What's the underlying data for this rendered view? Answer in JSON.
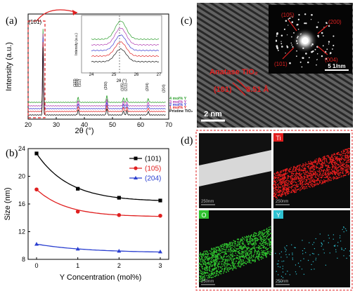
{
  "panels": {
    "a": {
      "label": "(a)",
      "ylabel": "Intensity (a.u.)",
      "xlabel": "2θ (°)",
      "xticks": [
        "20",
        "30",
        "40",
        "50",
        "60",
        "70"
      ],
      "peak_labels": [
        "(101)",
        "(103)",
        "(004)",
        "(112)",
        "(200)",
        "(105)",
        "(211)",
        "(204)",
        "(204)"
      ],
      "series": [
        {
          "name": "4 mol% Y",
          "color": "#2a9d2a"
        },
        {
          "name": "3 mol% Y",
          "color": "#b03ab0"
        },
        {
          "name": "2 mol% Y",
          "color": "#3a3ad0"
        },
        {
          "name": "1 mol% Y",
          "color": "#e02020"
        },
        {
          "name": "Pristine TiO₂",
          "color": "#111111"
        }
      ],
      "inset": {
        "ylabel": "Intensity (a.u.)",
        "xlabel": "2θ (°)",
        "xticks": [
          "24",
          "25",
          "26",
          "27"
        ]
      }
    },
    "b": {
      "label": "(b)",
      "ylabel": "Size (nm)",
      "xlabel": "Y Concentration (mol%)",
      "yticks": [
        "8",
        "12",
        "16",
        "20",
        "24"
      ],
      "xticks": [
        "0",
        "1",
        "2",
        "3"
      ]
    },
    "c": {
      "label": "(c)",
      "annotation_phase": "Anatase TiO₂",
      "annotation_plane": "(101)",
      "annotation_spacing": "3.51 Å",
      "scalebar": "2 nm",
      "saed_labels": [
        "(105)",
        "(200)",
        "(101)",
        "(004)"
      ],
      "saed_scale": "5 1/nm"
    },
    "d": {
      "label": "(d)",
      "tiles": [
        {
          "element": "",
          "scale": "250nm"
        },
        {
          "element": "Ti",
          "scale": "250nm",
          "color": "#e21d1d"
        },
        {
          "element": "O",
          "scale": "250nm",
          "color": "#2fc22f"
        },
        {
          "element": "Y",
          "scale": "250nm",
          "color": "#2ec0d0"
        }
      ]
    }
  },
  "chart_data": [
    {
      "type": "line",
      "panel": "a",
      "xlabel": "2θ (°)",
      "ylabel": "Intensity (a.u.)",
      "xlim": [
        20,
        70
      ],
      "series": [
        {
          "name": "4 mol% Y",
          "peaks": [
            25.3,
            37.8,
            48.0,
            53.9,
            55.1,
            62.7
          ]
        },
        {
          "name": "3 mol% Y",
          "peaks": [
            25.3,
            37.8,
            48.0,
            53.9,
            55.1,
            62.7
          ]
        },
        {
          "name": "2 mol% Y",
          "peaks": [
            25.3,
            37.8,
            48.0,
            53.9,
            55.1,
            62.7
          ]
        },
        {
          "name": "1 mol% Y",
          "peaks": [
            25.3,
            37.8,
            48.0,
            53.9,
            55.1,
            62.7
          ]
        },
        {
          "name": "Pristine TiO₂",
          "peaks": [
            25.3,
            37.8,
            48.0,
            53.9,
            55.1,
            62.7
          ]
        }
      ]
    },
    {
      "type": "line",
      "panel": "a-inset",
      "xlabel": "2θ (°)",
      "ylabel": "Intensity (a.u.)",
      "xlim": [
        24,
        27
      ],
      "reference_line_x": 25.3
    },
    {
      "type": "line",
      "panel": "b",
      "xlabel": "Y Concentration (mol%)",
      "ylabel": "Size (nm)",
      "x": [
        0,
        1,
        2,
        3
      ],
      "ylim": [
        8,
        24
      ],
      "legend_position": "top-right",
      "series": [
        {
          "name": "(101)",
          "color": "#000000",
          "marker": "square",
          "values": [
            23.3,
            18.2,
            16.9,
            16.5
          ]
        },
        {
          "name": "(105)",
          "color": "#e02020",
          "marker": "circle",
          "values": [
            18.1,
            14.9,
            14.4,
            14.3
          ]
        },
        {
          "name": "(204)",
          "color": "#2a3fd0",
          "marker": "triangle",
          "values": [
            10.2,
            9.5,
            9.2,
            9.1
          ]
        }
      ]
    }
  ]
}
